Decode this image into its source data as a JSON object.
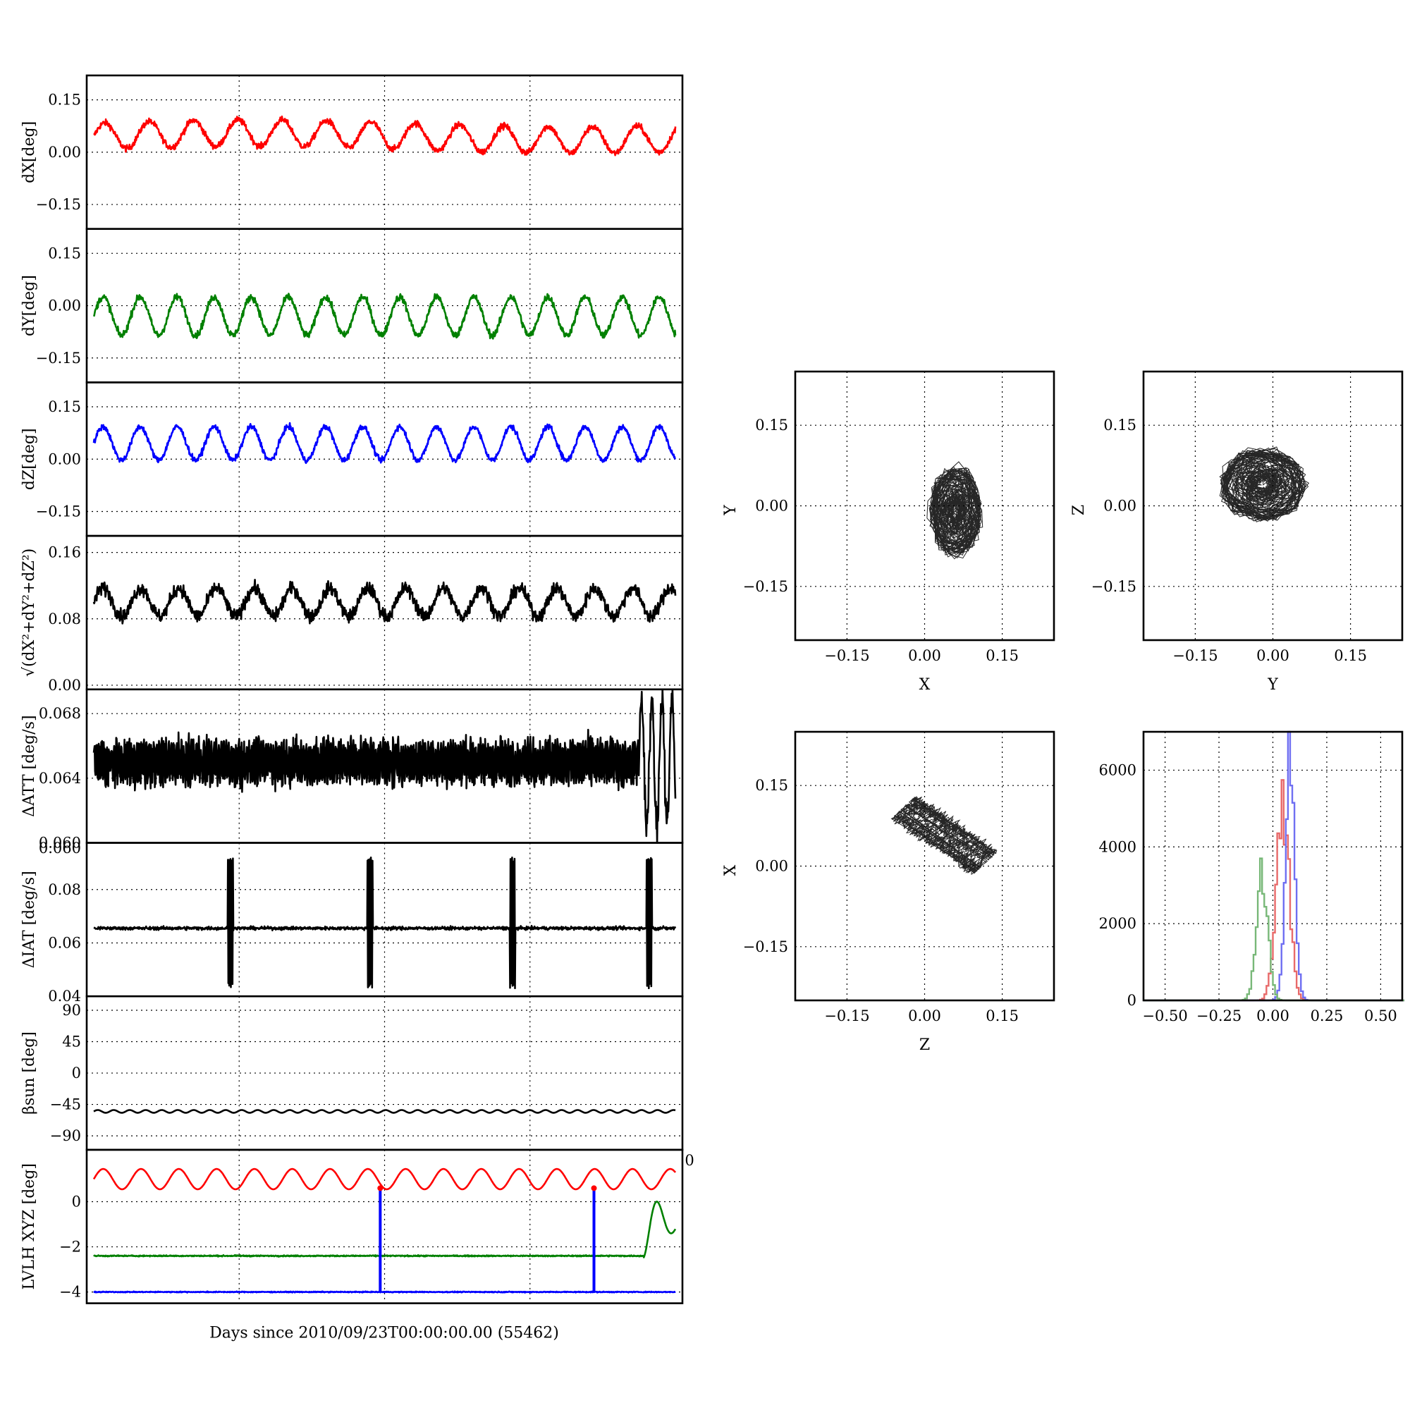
{
  "chart_data": [
    {
      "id": "dx",
      "type": "line",
      "ylabel": "dX[deg]",
      "ylim": [
        -0.22,
        0.22
      ],
      "yticks": [
        {
          "v": 0.15,
          "t": "0.15"
        },
        {
          "v": 0.0,
          "t": "0.00"
        },
        {
          "v": -0.15,
          "t": "−0.15"
        }
      ],
      "xlim": [
        0,
        40
      ],
      "xgrid": [
        10,
        20,
        30
      ],
      "series": [
        {
          "color": "#ff0000",
          "kind": "osc",
          "base": 0.045,
          "amp": 0.038,
          "period": 3.05,
          "noise": 0.009,
          "values_note": "oscillating 0.00–0.14"
        }
      ]
    },
    {
      "id": "dy",
      "type": "line",
      "ylabel": "dY[deg]",
      "ylim": [
        -0.22,
        0.22
      ],
      "yticks": [
        {
          "v": 0.15,
          "t": "0.15"
        },
        {
          "v": 0.0,
          "t": "0.00"
        },
        {
          "v": -0.15,
          "t": "−0.15"
        }
      ],
      "xlim": [
        0,
        40
      ],
      "xgrid": [
        10,
        20,
        30
      ],
      "series": [
        {
          "color": "#008000",
          "kind": "osc",
          "base": -0.03,
          "amp": 0.055,
          "period": 2.55,
          "noise": 0.01
        }
      ]
    },
    {
      "id": "dz",
      "type": "line",
      "ylabel": "dZ[deg]",
      "ylim": [
        -0.22,
        0.22
      ],
      "yticks": [
        {
          "v": 0.15,
          "t": "0.15"
        },
        {
          "v": 0.0,
          "t": "0.00"
        },
        {
          "v": -0.15,
          "t": "−0.15"
        }
      ],
      "xlim": [
        0,
        40
      ],
      "xgrid": [
        10,
        20,
        30
      ],
      "series": [
        {
          "color": "#0000ff",
          "kind": "osc",
          "base": 0.045,
          "amp": 0.048,
          "period": 2.55,
          "noise": 0.008
        }
      ]
    },
    {
      "id": "dr",
      "type": "line",
      "ylabel": "√(dX²+dY²+dZ²)",
      "ylim": [
        -0.005,
        0.18
      ],
      "yticks": [
        {
          "v": 0.16,
          "t": "0.16"
        },
        {
          "v": 0.08,
          "t": "0.08"
        },
        {
          "v": 0.0,
          "t": "0.00"
        }
      ],
      "xlim": [
        0,
        40
      ],
      "xgrid": [
        10,
        20,
        30
      ],
      "series": [
        {
          "color": "#000000",
          "kind": "osc",
          "base": 0.1,
          "amp": 0.017,
          "period": 2.6,
          "noise": 0.008
        }
      ]
    },
    {
      "id": "datt",
      "type": "line",
      "ylabel": "ΔATT [deg/s]",
      "ylim": [
        0.06,
        0.0695
      ],
      "yticks": [
        {
          "v": 0.068,
          "t": "0.068"
        },
        {
          "v": 0.064,
          "t": "0.064"
        },
        {
          "v": 0.06,
          "t": "0.060"
        }
      ],
      "xlim": [
        0,
        40
      ],
      "xgrid": [
        10,
        20,
        30
      ],
      "series": [
        {
          "color": "#000000",
          "kind": "band",
          "base": 0.065,
          "amp": 0.0012,
          "noise": 0.0006
        }
      ]
    },
    {
      "id": "diat",
      "type": "line",
      "ylabel": "ΔIAT [deg/s]",
      "ylim": [
        0.04,
        0.0975
      ],
      "yticks": [
        {
          "v": 0.08,
          "t": "0.08"
        },
        {
          "v": 0.06,
          "t": "0.06"
        },
        {
          "v": 0.04,
          "t": "0.04"
        }
      ],
      "xlim": [
        0,
        40
      ],
      "xgrid": [
        10,
        20,
        30
      ],
      "series": [
        {
          "color": "#000000",
          "kind": "spikes",
          "base": 0.0655,
          "noise": 0.0006,
          "spikes": [
            9.4,
            19.0,
            28.8,
            38.2
          ],
          "spike_min": 0.043,
          "spike_max": 0.092
        }
      ]
    },
    {
      "id": "beta",
      "type": "line",
      "ylabel": "βsun [deg]",
      "ylim": [
        -110,
        110
      ],
      "yticks": [
        {
          "v": 90,
          "t": "90"
        },
        {
          "v": 45,
          "t": "45"
        },
        {
          "v": 0,
          "t": "0"
        },
        {
          "v": -45,
          "t": "−45"
        },
        {
          "v": -90,
          "t": "−90"
        }
      ],
      "xlim": [
        0,
        40
      ],
      "xgrid": [
        10,
        20,
        30
      ],
      "series": [
        {
          "color": "#000000",
          "kind": "osc",
          "base": -55,
          "amp": 2,
          "period": 1.1,
          "noise": 0
        }
      ]
    },
    {
      "id": "lvlh",
      "type": "line",
      "ylabel": "LVLH XYZ [deg]",
      "ylim": [
        -4.5,
        2.3
      ],
      "yticks": [
        {
          "v": 0,
          "t": "0"
        },
        {
          "v": -2,
          "t": "−2"
        },
        {
          "v": -4,
          "t": "−4"
        }
      ],
      "xlim": [
        0,
        40
      ],
      "xgrid": [
        10,
        20,
        30
      ],
      "xlabel": "Days since 2010/09/23T00:00:00.00 (55462)",
      "series": [
        {
          "color": "#ff0000",
          "kind": "osc",
          "base": 1.0,
          "amp": 0.45,
          "period": 2.6,
          "noise": 0
        },
        {
          "color": "#008000",
          "kind": "flat",
          "base": -2.4,
          "noise": 0.025,
          "tail": true
        },
        {
          "color": "#0000ff",
          "kind": "flat",
          "base": -4.0,
          "noise": 0.02
        }
      ],
      "vlines": [
        {
          "x": 19.7,
          "from": 0.6,
          "to": -4.0
        },
        {
          "x": 34.4,
          "from": 0.6,
          "to": -4.0
        }
      ]
    }
  ],
  "scatter_panels": [
    {
      "id": "xy",
      "xlabel": "X",
      "ylabel": "Y",
      "lim": [
        -0.25,
        0.25
      ],
      "center": [
        0.06,
        -0.01
      ],
      "rx": 0.05,
      "ry": 0.085,
      "kind": "ring"
    },
    {
      "id": "yz",
      "xlabel": "Y",
      "ylabel": "Z",
      "lim": [
        -0.25,
        0.25
      ],
      "center": [
        -0.02,
        0.04
      ],
      "rx": 0.085,
      "ry": 0.07,
      "kind": "ring"
    },
    {
      "id": "zx",
      "xlabel": "Z",
      "ylabel": "X",
      "lim": [
        -0.25,
        0.25
      ],
      "center": [
        0.04,
        0.06
      ],
      "kind": "diag"
    }
  ],
  "scatter_ticks": [
    {
      "v": -0.15,
      "t": "−0.15"
    },
    {
      "v": 0.0,
      "t": "0.00"
    },
    {
      "v": 0.15,
      "t": "0.15"
    }
  ],
  "histogram": {
    "xlim": [
      -0.6,
      0.6
    ],
    "ylim": [
      0,
      7000
    ],
    "xticks": [
      {
        "v": -0.5,
        "t": "−0.50"
      },
      {
        "v": -0.25,
        "t": "−0.25"
      },
      {
        "v": 0,
        "t": "0.00"
      },
      {
        "v": 0.25,
        "t": "0.25"
      },
      {
        "v": 0.5,
        "t": "0.50"
      }
    ],
    "yticks": [
      {
        "v": 0,
        "t": "0"
      },
      {
        "v": 2000,
        "t": "2000"
      },
      {
        "v": 4000,
        "t": "4000"
      },
      {
        "v": 6000,
        "t": "6000"
      }
    ],
    "series": [
      {
        "color": "#e86a6a",
        "mean": 0.04,
        "sd": 0.03,
        "peak": 5300
      },
      {
        "color": "#6f6ff2",
        "mean": 0.075,
        "sd": 0.022,
        "peak": 6300
      },
      {
        "color": "#78b878",
        "mean": -0.055,
        "sd": 0.026,
        "peak": 3500
      }
    ]
  },
  "stray_labels": {
    "overlap": "0.060",
    "right_zero": "0"
  }
}
